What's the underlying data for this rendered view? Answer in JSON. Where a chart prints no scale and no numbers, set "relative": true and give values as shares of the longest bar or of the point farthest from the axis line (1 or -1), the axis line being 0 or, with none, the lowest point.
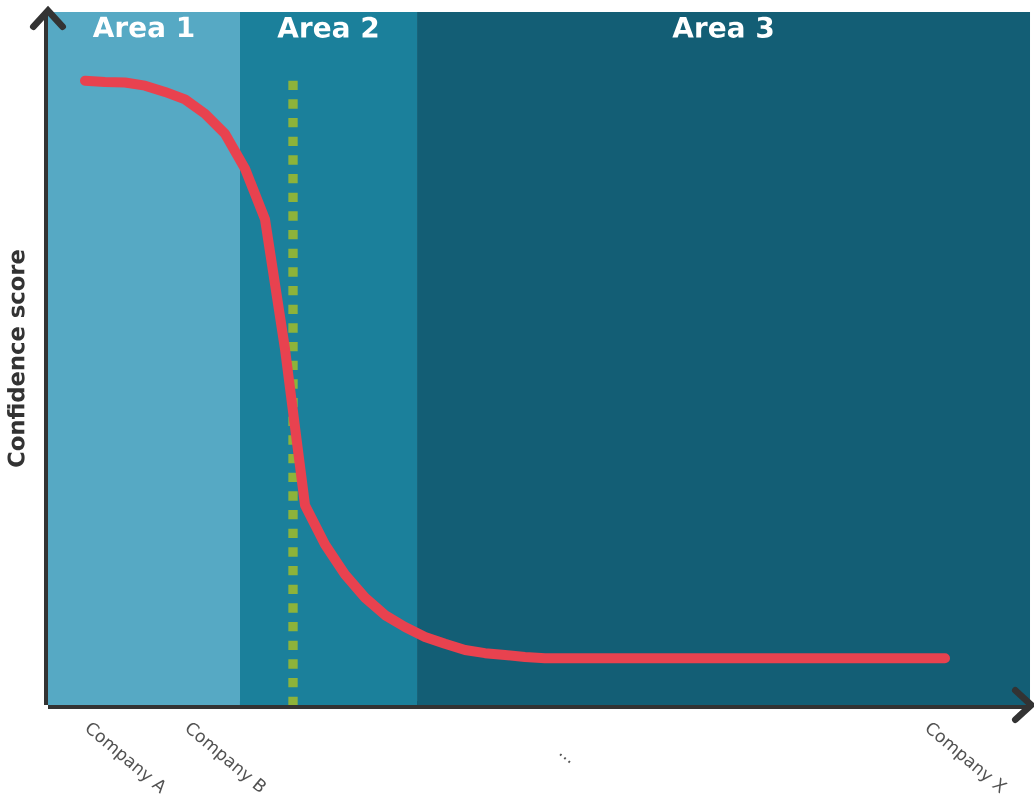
{
  "chart_data": {
    "type": "line",
    "relative": true,
    "ylabel": "Confidence score",
    "categories": [
      null,
      null,
      "Company A",
      null,
      null,
      null,
      null,
      "Company B",
      null,
      null,
      null,
      null,
      null,
      null,
      null,
      null,
      null,
      null,
      null,
      null,
      null,
      null,
      null,
      null,
      "...",
      null,
      null,
      null,
      null,
      null,
      null,
      null,
      null,
      null,
      null,
      null,
      null,
      null,
      null,
      null,
      null,
      null,
      null,
      null,
      "Company X",
      null
    ],
    "series": [
      {
        "color": "#e8424f",
        "values": [
          1.0,
          0.998,
          0.997,
          0.992,
          0.982,
          0.97,
          0.947,
          0.915,
          0.859,
          0.778,
          0.57,
          0.32,
          0.257,
          0.209,
          0.172,
          0.144,
          0.125,
          0.109,
          0.098,
          0.088,
          0.083,
          0.08,
          0.077,
          0.075,
          0.075,
          0.075,
          0.075,
          0.075,
          0.075,
          0.075,
          0.075,
          0.075,
          0.075,
          0.075,
          0.075,
          0.075,
          0.075,
          0.075,
          0.075,
          0.075,
          0.075,
          0.075,
          0.075,
          0.075,
          null,
          null
        ]
      }
    ],
    "annotations": [
      "Area 1",
      "Area 2",
      "Area 3"
    ]
  }
}
